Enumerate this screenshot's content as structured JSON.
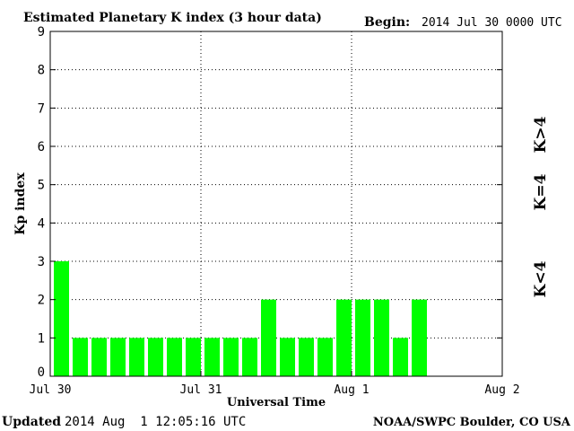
{
  "header": {
    "title": "Estimated Planetary K index (3 hour data)",
    "begin_label": "Begin:",
    "begin_value": "2014 Jul 30 0000 UTC"
  },
  "footer": {
    "updated_label": "Updated",
    "updated_value": "2014 Aug  1 12:05:16 UTC",
    "credit": "NOAA/SWPC Boulder, CO USA"
  },
  "legend": [
    {
      "label": "K<4",
      "color": "#00ff00"
    },
    {
      "label": "K=4",
      "color": "#ffcc00"
    },
    {
      "label": "K>4",
      "color": "#ff3300"
    }
  ],
  "chart_data": {
    "type": "bar",
    "title": "Estimated Planetary K index (3 hour data)",
    "xlabel": "Universal Time",
    "ylabel": "Kp index",
    "ylim": [
      0,
      9
    ],
    "yticks": [
      "0",
      "1",
      "2",
      "3",
      "4",
      "5",
      "6",
      "7",
      "8",
      "9"
    ],
    "xticks": [
      "Jul 30",
      "Jul 31",
      "Aug 1",
      "Aug 2"
    ],
    "bin_hours": 3,
    "total_bins": 24,
    "grid": true,
    "values": [
      3,
      1,
      1,
      1,
      1,
      1,
      1,
      1,
      1,
      1,
      1,
      2,
      1,
      1,
      1,
      2,
      2,
      2,
      1,
      2
    ],
    "bar_color": "#00ff00"
  }
}
